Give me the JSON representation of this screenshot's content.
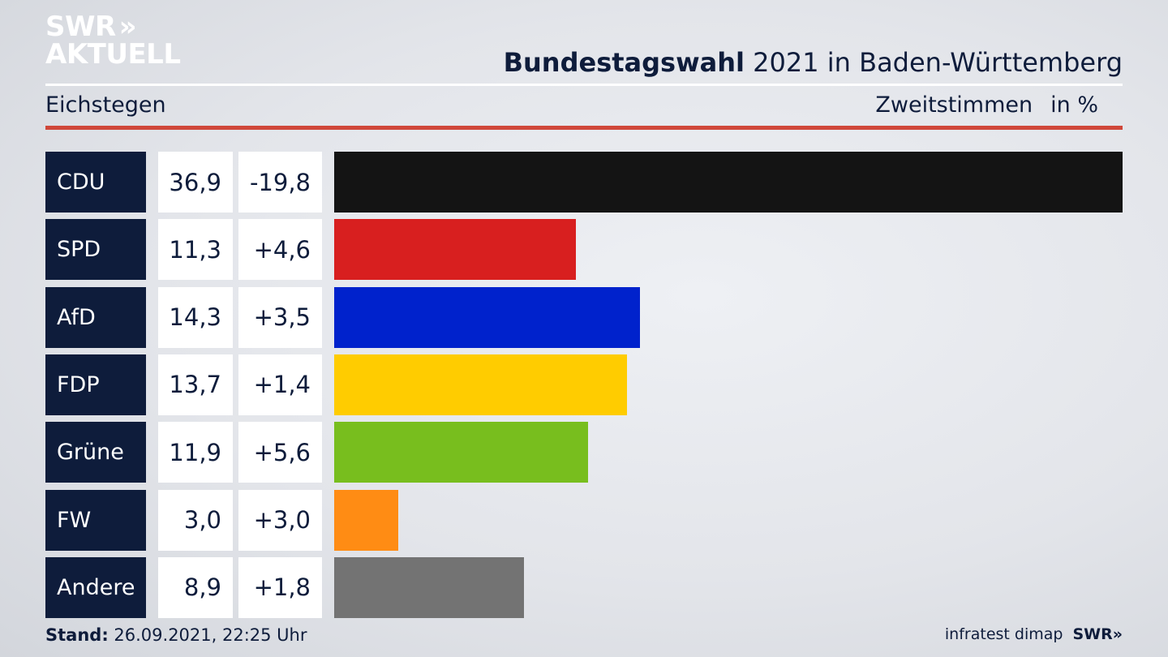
{
  "brand": {
    "line1": "SWR",
    "chevrons": "»",
    "line2": "AKTUELL"
  },
  "header": {
    "title_bold": "Bundestagswahl",
    "title_rest": " 2021 in Baden-Württemberg",
    "subtitle": "Eichstegen",
    "metric": "Zweitstimmen",
    "unit": "in %"
  },
  "chart_data": {
    "type": "bar",
    "orientation": "horizontal",
    "categories": [
      "CDU",
      "SPD",
      "AfD",
      "FDP",
      "Grüne",
      "FW",
      "Andere"
    ],
    "values": [
      36.9,
      11.3,
      14.3,
      13.7,
      11.9,
      3.0,
      8.9
    ],
    "value_labels": [
      "36,9",
      "11,3",
      "14,3",
      "13,7",
      "11,9",
      "3,0",
      "8,9"
    ],
    "diff_labels": [
      "-19,8",
      "+4,6",
      "+3,5",
      "+1,4",
      "+5,6",
      "+3,0",
      "+1,8"
    ],
    "colors": [
      "#141414",
      "#d81f1f",
      "#0022cc",
      "#ffcc00",
      "#78be1e",
      "#ff8c14",
      "#737373"
    ],
    "xlim": [
      0,
      36.9
    ],
    "grid": false
  },
  "footer": {
    "stand_label": "Stand:",
    "stand_value": " 26.09.2021, 22:25 Uhr",
    "source": "infratest dimap",
    "brand": "SWR»"
  }
}
